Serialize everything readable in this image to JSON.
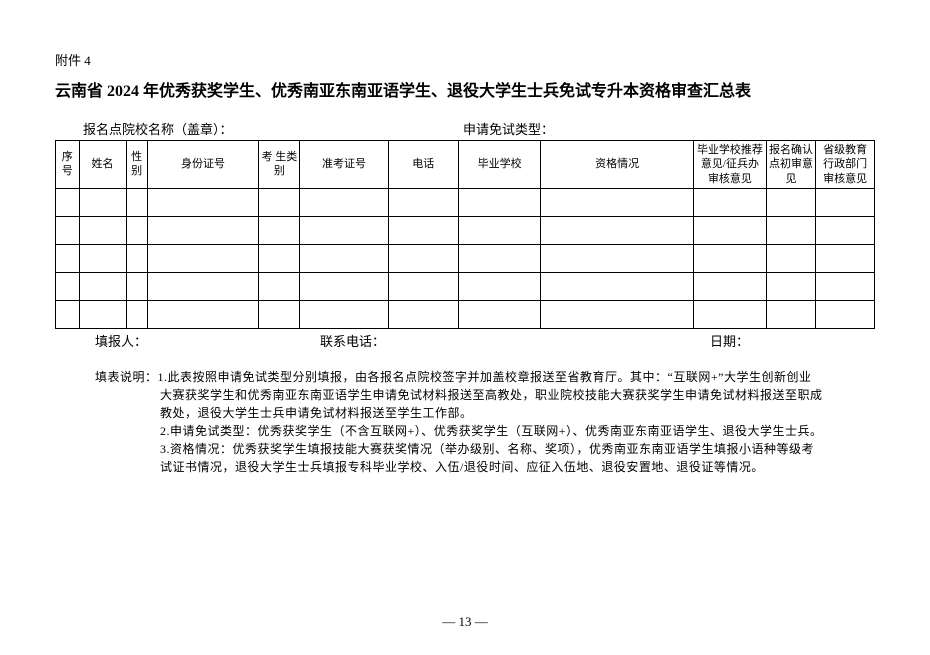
{
  "appendix_label": "附件 4",
  "title": "云南省 2024 年优秀获奖学生、优秀南亚东南亚语学生、退役大学生士兵免试专升本资格审查汇总表",
  "info": {
    "school_label": "报名点院校名称（盖章）：",
    "type_label": "申请免试类型："
  },
  "headers": {
    "seq": "序号",
    "name": "姓名",
    "gender": "性别",
    "id": "身份证号",
    "category": "考 生类 别",
    "exam_no": "准考证号",
    "phone": "电话",
    "school": "毕业学校",
    "qualification": "资格情况",
    "recommendation": "毕业学校推荐意见/征兵办审核意见",
    "confirmation": "报名确认点初审意见",
    "provincial": "省级教育行政部门审核意见"
  },
  "footer": {
    "reporter": "填报人：",
    "contact": "联系电话：",
    "date": "日期："
  },
  "instructions": {
    "label": "填表说明：",
    "line1a": "1.此表按照申请免试类型分别填报，由各报名点院校签字并加盖校章报送至省教育厅。其中：“互联网+”大学生创新创业",
    "line1b": "大赛获奖学生和优秀南亚东南亚语学生申请免试材料报送至高教处，职业院校技能大赛获奖学生申请免试材料报送至职成",
    "line1c": "教处，退役大学生士兵申请免试材料报送至学生工作部。",
    "line2": "2.申请免试类型：优秀获奖学生（不含互联网+）、优秀获奖学生（互联网+）、优秀南亚东南亚语学生、退役大学生士兵。",
    "line3a": "3.资格情况：优秀获奖学生填报技能大赛获奖情况（举办级别、名称、奖项），优秀南亚东南亚语学生填报小语种等级考",
    "line3b": "试证书情况，退役大学生士兵填报专科毕业学校、入伍/退役时间、应征入伍地、退役安置地、退役证等情况。"
  },
  "page_number": "— 13 —"
}
